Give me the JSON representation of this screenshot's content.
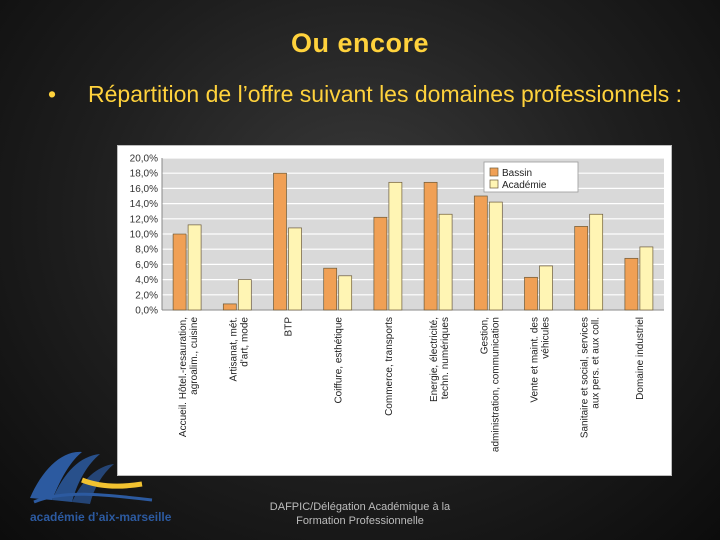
{
  "slide": {
    "title": "Ou encore",
    "bullet_symbol": "•",
    "bullet_text": "Répartition de l’offre suivant les domaines professionnels :"
  },
  "footer": {
    "line1": "DAFPIC/Délégation Académique à la",
    "line2": "Formation Professionnelle"
  },
  "logo": {
    "text": "académie d’aix-marseille"
  },
  "colors": {
    "title": "#ffd23c",
    "bassin": "#f0a055",
    "academie": "#fff5b4",
    "logo_blue": "#2c5aa0"
  },
  "chart_data": {
    "type": "bar",
    "categories": [
      "Accueil. Hôtel.-resauration, agroalim., cuisine",
      "Artisanat, mét. d'art, mode",
      "BTP",
      "Coiffure, esthétique",
      "Commerce, transports",
      "Energie, électricité, techn. numériques",
      "Gestion, administration, communication",
      "Vente et maint. des véhicules",
      "Sanitaire et social, services aux pers. et aux coll.",
      "Domaine industriel"
    ],
    "series": [
      {
        "name": "Bassin",
        "color": "#f0a055",
        "values": [
          10.0,
          0.8,
          18.0,
          5.5,
          12.2,
          16.8,
          15.0,
          4.3,
          11.0,
          6.8
        ]
      },
      {
        "name": "Académie",
        "color": "#fff5b4",
        "values": [
          11.2,
          4.0,
          10.8,
          4.5,
          16.8,
          12.6,
          14.2,
          5.8,
          12.6,
          8.3
        ]
      }
    ],
    "ylim": [
      0,
      20
    ],
    "yticks": [
      "0,0%",
      "2,0%",
      "4,0%",
      "6,0%",
      "8,0%",
      "10,0%",
      "12,0%",
      "14,0%",
      "16,0%",
      "18,0%",
      "20,0%"
    ],
    "grid": true,
    "legend_position": "top-right"
  }
}
